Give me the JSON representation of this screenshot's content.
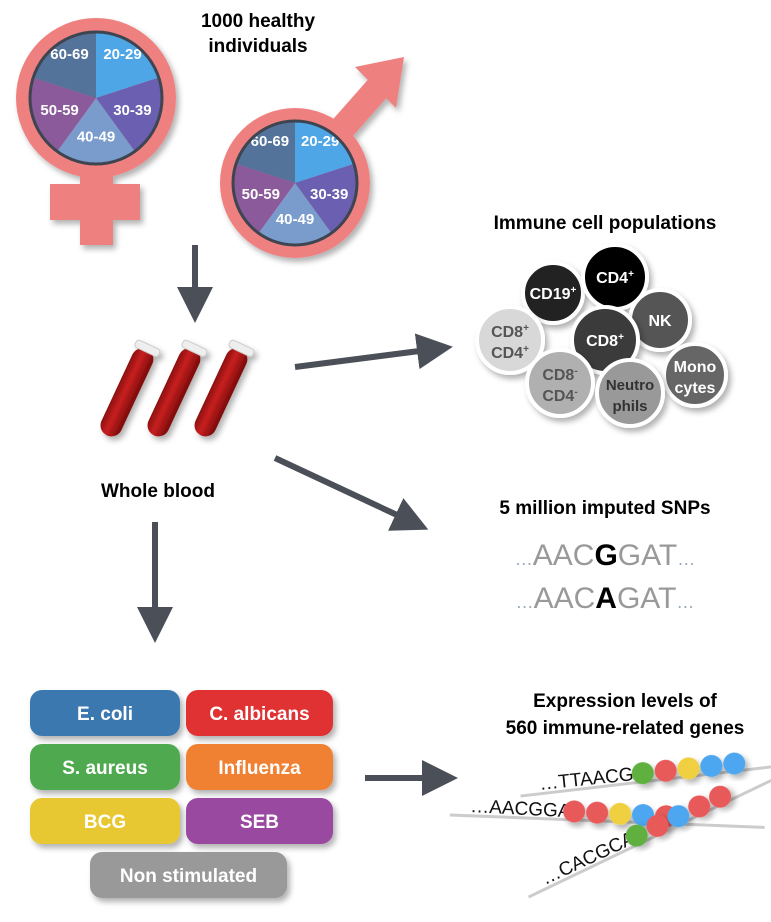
{
  "title": {
    "line1": "1000 healthy",
    "line2": "individuals"
  },
  "age_groups": [
    "20-29",
    "30-39",
    "40-49",
    "50-59",
    "60-69"
  ],
  "age_colors": [
    "#4ea6e6",
    "#6a5fb0",
    "#7a9ccc",
    "#8a5a9a",
    "#54739a"
  ],
  "sex_symbol_color": "#ee8080",
  "whole_blood": "Whole blood",
  "immune": {
    "title": "Immune cell populations",
    "cells": [
      {
        "l1": "CD19",
        "sup1": "+",
        "l2": "",
        "sup2": "",
        "fill": "#222222",
        "text": "#ffffff"
      },
      {
        "l1": "CD4",
        "sup1": "+",
        "l2": "",
        "sup2": "",
        "fill": "#000000",
        "text": "#ffffff"
      },
      {
        "l1": "NK",
        "sup1": "",
        "l2": "",
        "sup2": "",
        "fill": "#555555",
        "text": "#ffffff"
      },
      {
        "l1": "CD8",
        "sup1": "+",
        "l2": "CD4",
        "sup2": "+",
        "fill": "#d8d8d8",
        "text": "#555555"
      },
      {
        "l1": "CD8",
        "sup1": "+",
        "l2": "",
        "sup2": "",
        "fill": "#3a3a3a",
        "text": "#ffffff"
      },
      {
        "l1": "Mono",
        "sup1": "",
        "l2": "cytes",
        "sup2": "",
        "fill": "#666666",
        "text": "#ffffff"
      },
      {
        "l1": "CD8",
        "sup1": "-",
        "l2": "CD4",
        "sup2": "-",
        "fill": "#b0b0b0",
        "text": "#555555"
      },
      {
        "l1": "Neutro",
        "sup1": "",
        "l2": "phils",
        "sup2": "",
        "fill": "#999999",
        "text": "#333333"
      }
    ]
  },
  "snps": {
    "title": "5 million imputed SNPs",
    "rows": [
      {
        "pre": "…",
        "left": "AAC",
        "variant": "G",
        "right": "GAT",
        "post": "…"
      },
      {
        "pre": "…",
        "left": "AAC",
        "variant": "A",
        "right": "GAT",
        "post": "…"
      }
    ]
  },
  "stimuli": [
    {
      "label": "E. coli",
      "color": "#3a78b0"
    },
    {
      "label": "C. albicans",
      "color": "#e03030"
    },
    {
      "label": "S. aureus",
      "color": "#4faa4f"
    },
    {
      "label": "Influenza",
      "color": "#f08030"
    },
    {
      "label": "BCG",
      "color": "#e8c830"
    },
    {
      "label": "SEB",
      "color": "#9a4aa0"
    },
    {
      "label": "Non stimulated",
      "color": "#999999"
    }
  ],
  "expression": {
    "title_line1": "Expression levels of",
    "title_line2": "560 immune-related genes",
    "rows": [
      {
        "seq": "…TTAACGG",
        "beads": [
          "#60b040",
          "#e85a5a",
          "#f0d040",
          "#4ea6f0",
          "#4ea6f0"
        ]
      },
      {
        "seq": "…AACGGAT",
        "beads": [
          "#e85a5a",
          "#e85a5a",
          "#f0d040",
          "#4ea6f0",
          "#e85a5a"
        ]
      },
      {
        "seq": "…CACGCAA",
        "beads": [
          "#60b040",
          "#e85a5a",
          "#4ea6f0",
          "#e85a5a",
          "#e85a5a"
        ]
      }
    ]
  }
}
